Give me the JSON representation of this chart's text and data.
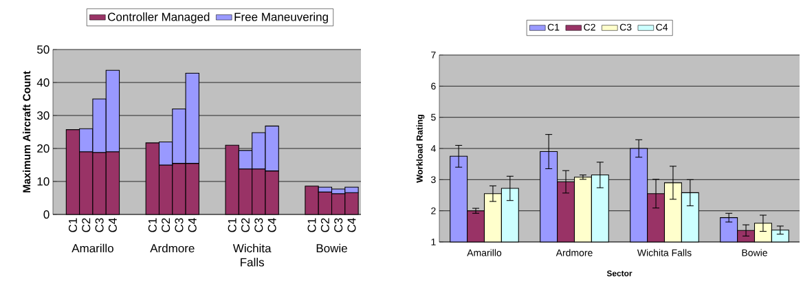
{
  "chart_data": [
    {
      "type": "bar",
      "stacked": true,
      "categories": [
        "C1",
        "C2",
        "C3",
        "C4",
        "C1",
        "C2",
        "C3",
        "C4",
        "C1",
        "C2",
        "C3",
        "C4",
        "C1",
        "C2",
        "C3",
        "C4"
      ],
      "annotations": [
        "Amarillo",
        "Ardmore",
        "Wichita Falls",
        "Bowie"
      ],
      "ylabel": "Maximum Aircraft Count",
      "ylim": [
        0,
        50
      ],
      "yticks": [
        0,
        10,
        20,
        30,
        40,
        50
      ],
      "grid": "y",
      "legend": "top",
      "series": [
        {
          "name": "Controller Managed",
          "color": "#993366",
          "values": [
            25.7,
            19,
            18.8,
            19,
            21.7,
            15,
            15.5,
            15.5,
            21,
            13.8,
            13.8,
            13.2,
            8.6,
            6.8,
            6.3,
            6.6
          ]
        },
        {
          "name": "Free Maneuvering",
          "color": "#9999ff",
          "values": [
            null,
            7,
            16.2,
            24.7,
            null,
            7,
            16.5,
            27.3,
            null,
            5.6,
            11,
            13.6,
            null,
            1.5,
            1.4,
            1.7
          ]
        }
      ]
    },
    {
      "type": "bar",
      "categories": [
        "Amarillo",
        "Ardmore",
        "Wichita Falls",
        "Bowie"
      ],
      "xlabel": "Sector",
      "ylabel": "Workload Rating",
      "ylim": [
        1,
        7
      ],
      "yticks": [
        1,
        2,
        3,
        4,
        5,
        6,
        7
      ],
      "grid": "y",
      "legend": "top",
      "series": [
        {
          "name": "C1",
          "color": "#9999ff",
          "values": [
            3.75,
            3.9,
            4.0,
            1.78
          ],
          "errors": [
            0.35,
            0.55,
            0.28,
            0.14
          ]
        },
        {
          "name": "C2",
          "color": "#993366",
          "values": [
            2.0,
            2.93,
            2.55,
            1.37
          ],
          "errors": [
            0.08,
            0.36,
            0.46,
            0.18
          ]
        },
        {
          "name": "C3",
          "color": "#ffffcc",
          "values": [
            2.55,
            3.08,
            2.9,
            1.6
          ],
          "errors": [
            0.25,
            0.07,
            0.53,
            0.26
          ]
        },
        {
          "name": "C4",
          "color": "#ccffff",
          "values": [
            2.72,
            3.15,
            2.58,
            1.38
          ],
          "errors": [
            0.39,
            0.41,
            0.42,
            0.13
          ]
        }
      ]
    }
  ]
}
